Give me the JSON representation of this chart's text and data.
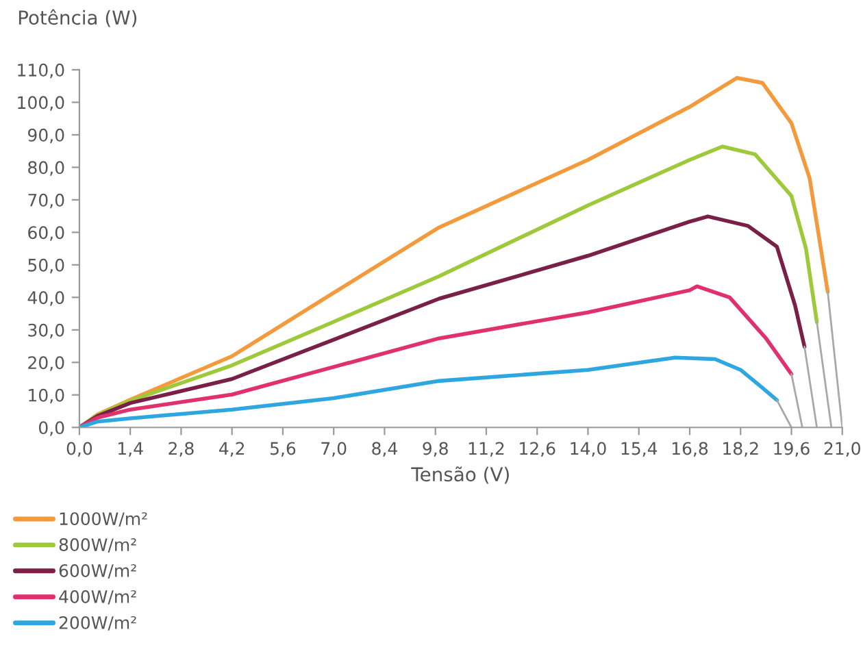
{
  "chart_data": {
    "type": "line",
    "xlabel": "Tensão (V)",
    "ylabel": "Potência (W)",
    "xlim": [
      0,
      21
    ],
    "ylim": [
      0,
      110
    ],
    "xticks": [
      {
        "value": 0,
        "label": "0,0"
      },
      {
        "value": 1.4,
        "label": "1,4"
      },
      {
        "value": 2.8,
        "label": "2,8"
      },
      {
        "value": 4.2,
        "label": "4,2"
      },
      {
        "value": 5.6,
        "label": "5,6"
      },
      {
        "value": 7,
        "label": "7,0"
      },
      {
        "value": 8.4,
        "label": "8,4"
      },
      {
        "value": 9.8,
        "label": "9,8"
      },
      {
        "value": 11.2,
        "label": "11,2"
      },
      {
        "value": 12.6,
        "label": "12,6"
      },
      {
        "value": 14,
        "label": "14,0"
      },
      {
        "value": 15.4,
        "label": "15,4"
      },
      {
        "value": 16.8,
        "label": "16,8"
      },
      {
        "value": 18.2,
        "label": "18,2"
      },
      {
        "value": 19.6,
        "label": "19,6"
      },
      {
        "value": 21,
        "label": "21,0"
      }
    ],
    "yticks": [
      {
        "value": 0,
        "label": "0,0"
      },
      {
        "value": 10,
        "label": "10,0"
      },
      {
        "value": 20,
        "label": "20,0"
      },
      {
        "value": 30,
        "label": "30,0"
      },
      {
        "value": 40,
        "label": "40,0"
      },
      {
        "value": 50,
        "label": "50,0"
      },
      {
        "value": 60,
        "label": "60,0"
      },
      {
        "value": 70,
        "label": "70,0"
      },
      {
        "value": 80,
        "label": "80,0"
      },
      {
        "value": 90,
        "label": "90,0"
      },
      {
        "value": 100,
        "label": "100,0"
      },
      {
        "value": 110,
        "label": "110,0"
      }
    ],
    "grid": false,
    "legend": "bottom left",
    "marker": "none",
    "line_style": "solid",
    "series": [
      {
        "name": "1000W/m²",
        "color": "#f39a3c",
        "x": [
          0,
          0.5,
          1.4,
          4.2,
          7,
          9.9,
          14,
          16.8,
          18.1,
          18.8,
          19.6,
          20.1,
          20.6
        ],
        "values": [
          0,
          4,
          8.5,
          21.9,
          41.4,
          61.5,
          82.3,
          98.6,
          107.5,
          106,
          93.6,
          76.7,
          41.7
        ]
      },
      {
        "name": "800W/m²",
        "color": "#9dc93b",
        "x": [
          0,
          0.5,
          1.4,
          4.2,
          7,
          9.9,
          14,
          16.8,
          17.7,
          18.6,
          19.6,
          20,
          20.3
        ],
        "values": [
          0,
          3.8,
          8.2,
          19.1,
          32.5,
          46.5,
          68.3,
          82.3,
          86.4,
          84,
          71.2,
          55,
          32.4
        ]
      },
      {
        "name": "600W/m²",
        "color": "#7a2048",
        "x": [
          0,
          0.5,
          1.4,
          4.2,
          7,
          9.9,
          14,
          16.8,
          17.3,
          18.4,
          19.2,
          19.7,
          19.96
        ],
        "values": [
          0,
          3.5,
          7.5,
          14.9,
          27,
          39.6,
          52.8,
          63.3,
          64.9,
          62,
          55.6,
          37.5,
          24.8
        ]
      },
      {
        "name": "400W/m²",
        "color": "#e0306e",
        "x": [
          0,
          0.5,
          1.4,
          4.2,
          7,
          9.9,
          14,
          16.8,
          17.0,
          17.9,
          18.9,
          19.6
        ],
        "values": [
          0,
          3,
          5.5,
          10.1,
          18.6,
          27.4,
          35.4,
          42.2,
          43.4,
          40,
          27.4,
          16.4
        ]
      },
      {
        "name": "200W/m²",
        "color": "#2ea6e0",
        "x": [
          0,
          0.5,
          1.4,
          4.2,
          7,
          9.9,
          14,
          16.4,
          17.5,
          18.2,
          18.8,
          19.2
        ],
        "values": [
          0,
          1.8,
          2.8,
          5.5,
          9,
          14.3,
          17.7,
          21.5,
          21,
          17.7,
          12.2,
          8.4
        ]
      },
      {
        "color": "#a8a8a8",
        "x": [
          20.6,
          21.0
        ],
        "values": [
          41.7,
          0
        ]
      },
      {
        "color": "#a8a8a8",
        "x": [
          20.3,
          20.7
        ],
        "values": [
          32.4,
          0
        ]
      },
      {
        "color": "#a8a8a8",
        "x": [
          19.96,
          20.3
        ],
        "values": [
          24.8,
          0
        ]
      },
      {
        "color": "#a8a8a8",
        "x": [
          19.6,
          19.9
        ],
        "values": [
          16.4,
          0
        ]
      },
      {
        "color": "#a8a8a8",
        "x": [
          19.2,
          19.6
        ],
        "values": [
          8.4,
          0
        ]
      }
    ]
  }
}
